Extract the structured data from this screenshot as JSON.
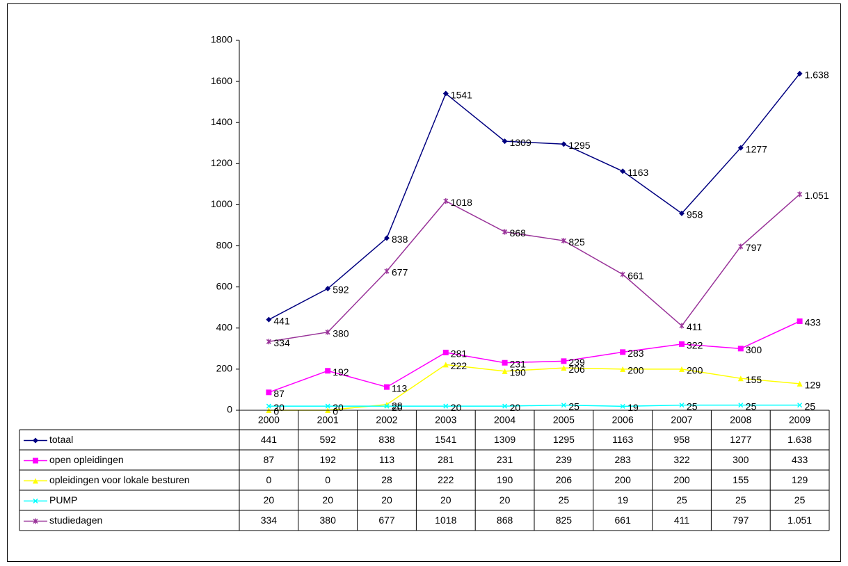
{
  "chart_data": {
    "type": "line",
    "categories": [
      "2000",
      "2001",
      "2002",
      "2003",
      "2004",
      "2005",
      "2006",
      "2007",
      "2008",
      "2009"
    ],
    "series": [
      {
        "name": "totaal",
        "color": "#000080",
        "marker": "diamond",
        "values": [
          441,
          592,
          838,
          1541,
          1309,
          1295,
          1163,
          958,
          1277,
          1638
        ],
        "value_labels": [
          "441",
          "592",
          "838",
          "1541",
          "1309",
          "1295",
          "1163",
          "958",
          "1277",
          "1.638"
        ]
      },
      {
        "name": "open opleidingen",
        "color": "#ff00ff",
        "marker": "square",
        "values": [
          87,
          192,
          113,
          281,
          231,
          239,
          283,
          322,
          300,
          433
        ]
      },
      {
        "name": "opleidingen voor lokale besturen",
        "color": "#ffff00",
        "marker": "triangle",
        "values": [
          0,
          0,
          28,
          222,
          190,
          206,
          200,
          200,
          155,
          129
        ]
      },
      {
        "name": "PUMP",
        "color": "#00ffff",
        "marker": "x",
        "values": [
          20,
          20,
          20,
          20,
          20,
          25,
          19,
          25,
          25,
          25
        ]
      },
      {
        "name": "studiedagen",
        "color": "#993399",
        "marker": "star",
        "values": [
          334,
          380,
          677,
          1018,
          868,
          825,
          661,
          411,
          797,
          1051
        ],
        "value_labels": [
          "334",
          "380",
          "677",
          "1018",
          "868",
          "825",
          "661",
          "411",
          "797",
          "1.051"
        ]
      }
    ],
    "ylim": [
      0,
      1800
    ],
    "yticks": [
      0,
      200,
      400,
      600,
      800,
      1000,
      1200,
      1400,
      1600,
      1800
    ]
  }
}
